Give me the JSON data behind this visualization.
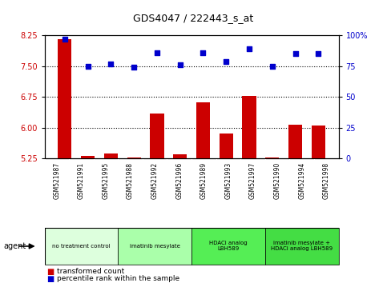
{
  "title": "GDS4047 / 222443_s_at",
  "samples": [
    "GSM521987",
    "GSM521991",
    "GSM521995",
    "GSM521988",
    "GSM521992",
    "GSM521996",
    "GSM521989",
    "GSM521993",
    "GSM521997",
    "GSM521990",
    "GSM521994",
    "GSM521998"
  ],
  "bar_values": [
    8.15,
    5.32,
    5.37,
    5.27,
    6.35,
    5.35,
    6.62,
    5.85,
    6.78,
    5.28,
    6.07,
    6.06
  ],
  "scatter_values": [
    97,
    75,
    77,
    74,
    86,
    76,
    86,
    79,
    89,
    75,
    85,
    85
  ],
  "bar_color": "#cc0000",
  "scatter_color": "#0000cc",
  "ylim_left": [
    5.25,
    8.25
  ],
  "ylim_right": [
    0,
    100
  ],
  "yticks_left": [
    5.25,
    6.0,
    6.75,
    7.5,
    8.25
  ],
  "yticks_right": [
    0,
    25,
    50,
    75,
    100
  ],
  "ytick_labels_right": [
    "0",
    "25",
    "50",
    "75",
    "100%"
  ],
  "hlines": [
    6.0,
    6.75,
    7.5
  ],
  "bar_bottom": 5.25,
  "groups": [
    {
      "label": "no treatment control",
      "indices": [
        0,
        1,
        2
      ],
      "color": "#ddffdd"
    },
    {
      "label": "imatinib mesylate",
      "indices": [
        3,
        4,
        5
      ],
      "color": "#aaffaa"
    },
    {
      "label": "HDACi analog\nLBH589",
      "indices": [
        6,
        7,
        8
      ],
      "color": "#55ee55"
    },
    {
      "label": "imatinib mesylate +\nHDACi analog LBH589",
      "indices": [
        9,
        10,
        11
      ],
      "color": "#44dd44"
    }
  ],
  "legend_bar_label": "transformed count",
  "legend_scatter_label": "percentile rank within the sample",
  "agent_label": "agent"
}
